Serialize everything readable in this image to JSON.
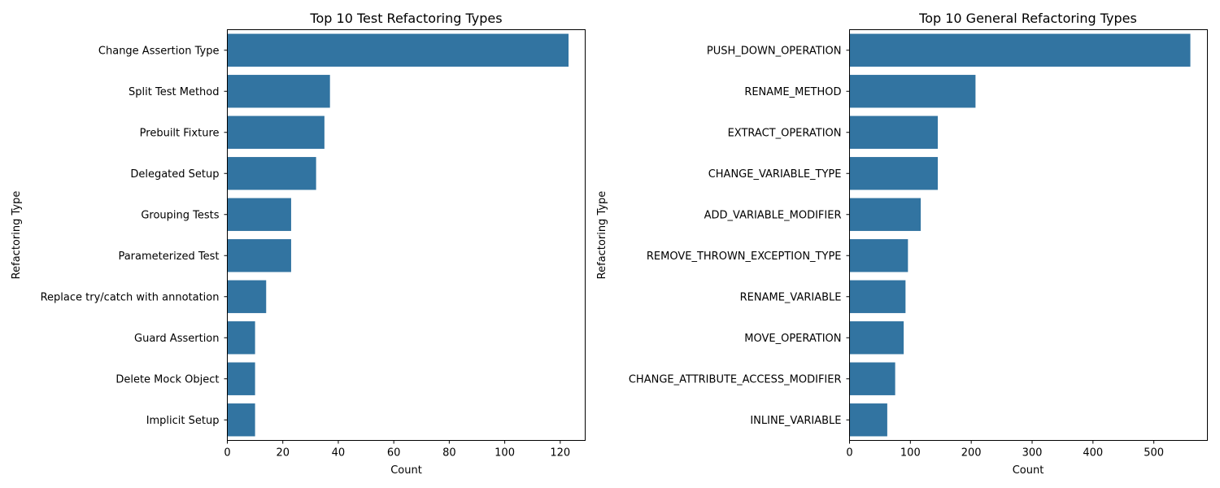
{
  "chart_data": [
    {
      "type": "bar",
      "orientation": "horizontal",
      "title": "Top 10 Test Refactoring Types",
      "xlabel": "Count",
      "ylabel": "Refactoring Type",
      "categories": [
        "Change Assertion Type",
        "Split Test Method",
        "Prebuilt Fixture",
        "Delegated Setup",
        "Grouping Tests",
        "Parameterized Test",
        "Replace try/catch with annotation",
        "Guard Assertion",
        "Delete Mock Object",
        "Implicit Setup"
      ],
      "values": [
        123,
        37,
        35,
        32,
        23,
        23,
        14,
        10,
        10,
        10
      ],
      "xlim": [
        0,
        129
      ],
      "xticks": [
        0,
        20,
        40,
        60,
        80,
        100,
        120
      ],
      "xtick_labels": [
        "0",
        "20",
        "40",
        "60",
        "80",
        "100",
        "120"
      ],
      "color": "#3274a1",
      "grid": false
    },
    {
      "type": "bar",
      "orientation": "horizontal",
      "title": "Top 10 General Refactoring Types",
      "xlabel": "Count",
      "ylabel": "Refactoring Type",
      "categories": [
        "PUSH_DOWN_OPERATION",
        "RENAME_METHOD",
        "EXTRACT_OPERATION",
        "CHANGE_VARIABLE_TYPE",
        "ADD_VARIABLE_MODIFIER",
        "REMOVE_THROWN_EXCEPTION_TYPE",
        "RENAME_VARIABLE",
        "MOVE_OPERATION",
        "CHANGE_ATTRIBUTE_ACCESS_MODIFIER",
        "INLINE_VARIABLE"
      ],
      "values": [
        560,
        207,
        145,
        145,
        117,
        96,
        92,
        89,
        75,
        62
      ],
      "xlim": [
        0,
        588
      ],
      "xticks": [
        0,
        100,
        200,
        300,
        400,
        500
      ],
      "xtick_labels": [
        "0",
        "100",
        "200",
        "300",
        "400",
        "500"
      ],
      "color": "#3274a1",
      "grid": false
    }
  ]
}
